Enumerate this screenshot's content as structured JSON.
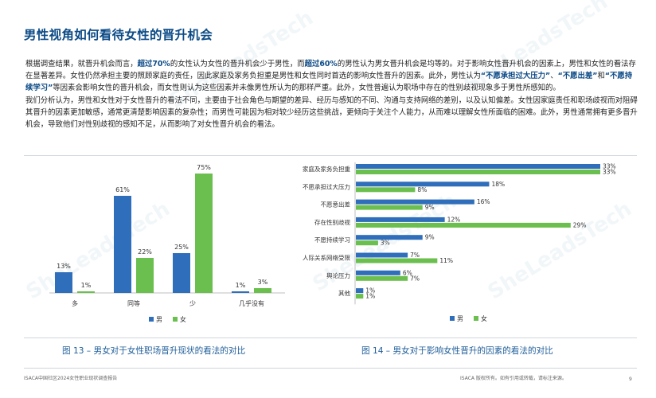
{
  "page": {
    "title": "男性视角如何看待女性的晋升机会",
    "page_number": "9",
    "footer_left": "ISACA中国社区2024女性职业现状调查报告",
    "footer_right": "ISACA 版权所有。如有引用或转载，请标注来源。",
    "watermark_text": "SheLeadsTech",
    "accent_color": "#0b4a86"
  },
  "paragraphs": {
    "p1": {
      "a": "根据调查结果，就晋升机会而言，",
      "b": "超过70%",
      "c": "的女性认为女性的晋升机会少于男性，而",
      "d": "超过60%",
      "e": "的男性认为男女晋升机会是均等的。对于影响女性晋升机会的因素上，男性和女性的看法存在显著差异。女性仍然承担主要的照顾家庭的责任，因此家庭及家务负担重是男性和女性同时首选的影响女性晋升的因素。此外，男性认为",
      "f": "“不愿承担过大压力”",
      "g": "、",
      "h": "“不愿出差”",
      "i": "和",
      "j": "“不愿持续学习”",
      "k": "等因素会影响女性的晋升机会，而女性则认为这些因素并未像男性所认为的那样严重。此外，女性普遍认为职场中存在的性别歧视现象多于男性所感知的。"
    },
    "p2": "我们分析认为，男性和女性对于女性晋升的看法不同，主要由于社会角色与期望的差异、经历与感知的不同、沟通与支持网络的差别，以及认知偏差。女性因家庭责任和职场歧视而对阻碍其晋升的因素更加敏感，通常更清楚影响因素的复杂性；而男性可能因为相对较少经历这些挑战，更倾向于关注个人能力，从而难以理解女性所面临的困难。此外，男性通常拥有更多晋升机会，导致他们对性别歧视的感知不足，从而影响了对女性晋升机会的看法。"
  },
  "captions": {
    "fig13": "图 13 – 男女对于女性职场晋升现状的看法的对比",
    "fig14": "图 14 – 男女对于影响女性晋升的因素的看法的对比"
  },
  "chart_data": [
    {
      "type": "bar",
      "categories": [
        "多",
        "同等",
        "少",
        "几乎没有"
      ],
      "series": [
        {
          "name": "男",
          "values": [
            13,
            61,
            25,
            1
          ],
          "labels": [
            "13%",
            "61%",
            "25%",
            "1%"
          ],
          "color": "#2f6eba"
        },
        {
          "name": "女",
          "values": [
            1,
            22,
            75,
            3
          ],
          "labels": [
            "1%",
            "22%",
            "75%",
            "3%"
          ],
          "color": "#6bbf4e"
        }
      ],
      "ylim": [
        0,
        80
      ],
      "legend_position": "bottom",
      "grid": false
    },
    {
      "type": "bar",
      "orientation": "horizontal",
      "categories": [
        "家庭及家务负担重",
        "不愿承担过大压力",
        "不愿意出差",
        "存在性别歧视",
        "不愿持续学习",
        "人际关系网络受限",
        "舆论压力",
        "其他"
      ],
      "series": [
        {
          "name": "男",
          "values": [
            33,
            18,
            16,
            12,
            9,
            7,
            6,
            1
          ],
          "labels": [
            "33%",
            "18%",
            "16%",
            "12%",
            "9%",
            "7%",
            "6%",
            "1%"
          ],
          "color": "#2f6eba"
        },
        {
          "name": "女",
          "values": [
            33,
            8,
            9,
            29,
            3,
            11,
            7,
            1
          ],
          "labels": [
            "33%",
            "8%",
            "9%",
            "29%",
            "3%",
            "11%",
            "7%",
            "1%"
          ],
          "color": "#6bbf4e"
        }
      ],
      "xlim": [
        0,
        35
      ],
      "legend_position": "bottom",
      "grid": false
    }
  ]
}
